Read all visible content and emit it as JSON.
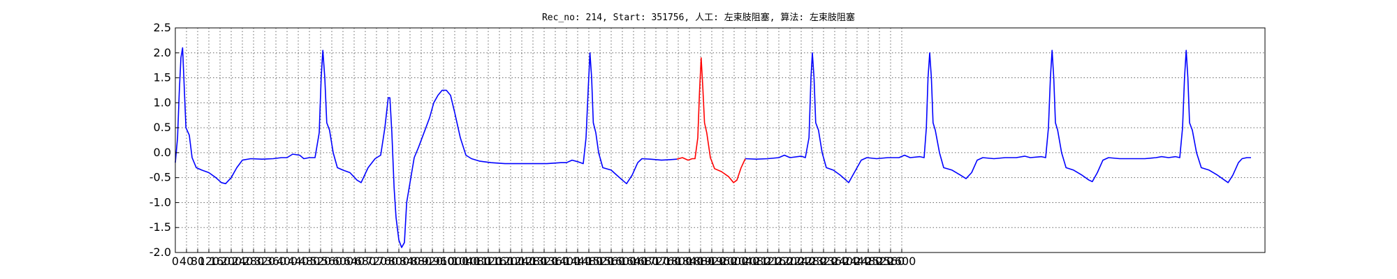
{
  "chart_data": {
    "type": "line",
    "title": "Rec_no: 214, Start: 351756, 人工: 左束肢阻塞, 算法: 左束肢阻塞",
    "xlabel": "",
    "ylabel": "",
    "xlim": [
      0,
      3900
    ],
    "ylim": [
      -2.0,
      2.5
    ],
    "y_ticks": [
      "-2.0",
      "-1.5",
      "-1.0",
      "-0.5",
      "0.0",
      "0.5",
      "1.0",
      "1.5",
      "2.0",
      "2.5"
    ],
    "x_ticks": [
      "0",
      "40",
      "80",
      "120",
      "160",
      "200",
      "240",
      "280",
      "320",
      "360",
      "400",
      "440",
      "480",
      "520",
      "560",
      "600",
      "640",
      "680",
      "720",
      "760",
      "800",
      "840",
      "880",
      "920",
      "960",
      "1000",
      "1040",
      "1080",
      "1120",
      "1160",
      "1200",
      "1240",
      "1280",
      "1320",
      "1360",
      "1400",
      "1440",
      "1480",
      "1520",
      "1560",
      "1600",
      "1640",
      "1680",
      "1720",
      "1760",
      "1800",
      "1840",
      "1880",
      "1920",
      "1960",
      "2000",
      "2040",
      "2080",
      "2120",
      "2160",
      "2200",
      "2240",
      "2280",
      "2320",
      "2360",
      "2400",
      "2440",
      "2480",
      "2520",
      "2560",
      "2600"
    ],
    "grid": true,
    "series": [
      {
        "color": "#0000ff",
        "points": [
          [
            0,
            -0.2
          ],
          [
            8,
            0.3
          ],
          [
            14,
            1.2
          ],
          [
            20,
            1.9
          ],
          [
            26,
            2.1
          ],
          [
            32,
            1.3
          ],
          [
            38,
            0.5
          ],
          [
            50,
            0.35
          ],
          [
            60,
            -0.1
          ],
          [
            75,
            -0.3
          ],
          [
            95,
            -0.35
          ],
          [
            120,
            -0.4
          ],
          [
            145,
            -0.5
          ],
          [
            165,
            -0.6
          ],
          [
            180,
            -0.62
          ],
          [
            200,
            -0.5
          ],
          [
            220,
            -0.3
          ],
          [
            240,
            -0.15
          ],
          [
            270,
            -0.12
          ],
          [
            310,
            -0.13
          ],
          [
            350,
            -0.12
          ],
          [
            380,
            -0.1
          ],
          [
            400,
            -0.1
          ],
          [
            420,
            -0.03
          ],
          [
            445,
            -0.05
          ],
          [
            460,
            -0.12
          ],
          [
            480,
            -0.1
          ],
          [
            500,
            -0.1
          ],
          [
            515,
            0.4
          ],
          [
            522,
            1.5
          ],
          [
            528,
            2.05
          ],
          [
            535,
            1.5
          ],
          [
            542,
            0.6
          ],
          [
            552,
            0.45
          ],
          [
            565,
            0.0
          ],
          [
            580,
            -0.3
          ],
          [
            600,
            -0.35
          ],
          [
            625,
            -0.4
          ],
          [
            650,
            -0.55
          ],
          [
            665,
            -0.6
          ],
          [
            690,
            -0.3
          ],
          [
            715,
            -0.12
          ],
          [
            735,
            -0.05
          ],
          [
            750,
            0.5
          ],
          [
            762,
            1.1
          ],
          [
            768,
            1.1
          ],
          [
            775,
            0.4
          ],
          [
            783,
            -0.7
          ],
          [
            790,
            -1.3
          ],
          [
            800,
            -1.75
          ],
          [
            810,
            -1.9
          ],
          [
            820,
            -1.8
          ],
          [
            828,
            -1.0
          ],
          [
            840,
            -0.6
          ],
          [
            855,
            -0.1
          ],
          [
            870,
            0.1
          ],
          [
            890,
            0.4
          ],
          [
            910,
            0.7
          ],
          [
            925,
            1.0
          ],
          [
            940,
            1.15
          ],
          [
            955,
            1.25
          ],
          [
            970,
            1.25
          ],
          [
            985,
            1.15
          ],
          [
            1000,
            0.8
          ],
          [
            1020,
            0.3
          ],
          [
            1040,
            -0.05
          ],
          [
            1060,
            -0.12
          ],
          [
            1090,
            -0.17
          ],
          [
            1130,
            -0.2
          ],
          [
            1180,
            -0.22
          ],
          [
            1230,
            -0.22
          ],
          [
            1280,
            -0.22
          ],
          [
            1330,
            -0.22
          ],
          [
            1380,
            -0.2
          ],
          [
            1400,
            -0.2
          ],
          [
            1420,
            -0.15
          ],
          [
            1440,
            -0.18
          ],
          [
            1460,
            -0.22
          ],
          [
            1470,
            0.3
          ],
          [
            1478,
            1.3
          ],
          [
            1484,
            2.0
          ],
          [
            1490,
            1.5
          ],
          [
            1496,
            0.6
          ],
          [
            1505,
            0.4
          ],
          [
            1515,
            0.0
          ],
          [
            1530,
            -0.3
          ],
          [
            1560,
            -0.35
          ],
          [
            1580,
            -0.45
          ],
          [
            1600,
            -0.55
          ],
          [
            1615,
            -0.62
          ],
          [
            1635,
            -0.45
          ],
          [
            1655,
            -0.2
          ],
          [
            1670,
            -0.12
          ],
          [
            1700,
            -0.13
          ],
          [
            1740,
            -0.15
          ],
          [
            1770,
            -0.14
          ],
          [
            1795,
            -0.13
          ]
        ]
      },
      {
        "color": "#ff0000",
        "points": [
          [
            1795,
            -0.13
          ],
          [
            1815,
            -0.1
          ],
          [
            1835,
            -0.15
          ],
          [
            1850,
            -0.12
          ],
          [
            1860,
            -0.12
          ],
          [
            1870,
            0.3
          ],
          [
            1876,
            1.2
          ],
          [
            1882,
            1.9
          ],
          [
            1888,
            1.3
          ],
          [
            1894,
            0.6
          ],
          [
            1902,
            0.4
          ],
          [
            1915,
            -0.1
          ],
          [
            1930,
            -0.32
          ],
          [
            1955,
            -0.38
          ],
          [
            1980,
            -0.48
          ],
          [
            1998,
            -0.6
          ],
          [
            2010,
            -0.55
          ],
          [
            2025,
            -0.3
          ],
          [
            2040,
            -0.12
          ]
        ]
      },
      {
        "color": "#0000ff",
        "points": [
          [
            2040,
            -0.12
          ],
          [
            2080,
            -0.13
          ],
          [
            2120,
            -0.12
          ],
          [
            2160,
            -0.1
          ],
          [
            2180,
            -0.05
          ],
          [
            2200,
            -0.1
          ],
          [
            2240,
            -0.07
          ],
          [
            2255,
            -0.1
          ],
          [
            2268,
            0.3
          ],
          [
            2275,
            1.5
          ],
          [
            2280,
            2.0
          ],
          [
            2286,
            1.5
          ],
          [
            2292,
            0.6
          ],
          [
            2302,
            0.45
          ],
          [
            2315,
            0.0
          ],
          [
            2330,
            -0.3
          ],
          [
            2355,
            -0.35
          ],
          [
            2380,
            -0.45
          ],
          [
            2400,
            -0.55
          ],
          [
            2410,
            -0.6
          ],
          [
            2430,
            -0.4
          ],
          [
            2455,
            -0.15
          ],
          [
            2475,
            -0.1
          ],
          [
            2510,
            -0.12
          ],
          [
            2550,
            -0.1
          ],
          [
            2590,
            -0.1
          ],
          [
            2610,
            -0.05
          ],
          [
            2630,
            -0.1
          ],
          [
            2665,
            -0.08
          ],
          [
            2680,
            -0.1
          ],
          [
            2688,
            0.5
          ],
          [
            2694,
            1.5
          ],
          [
            2700,
            2.0
          ],
          [
            2706,
            1.5
          ],
          [
            2712,
            0.6
          ],
          [
            2720,
            0.45
          ],
          [
            2735,
            0.0
          ],
          [
            2750,
            -0.3
          ],
          [
            2780,
            -0.35
          ],
          [
            2810,
            -0.45
          ],
          [
            2830,
            -0.52
          ],
          [
            2850,
            -0.4
          ],
          [
            2870,
            -0.15
          ],
          [
            2890,
            -0.1
          ],
          [
            2930,
            -0.12
          ],
          [
            2970,
            -0.1
          ],
          [
            3010,
            -0.1
          ],
          [
            3040,
            -0.07
          ],
          [
            3060,
            -0.1
          ],
          [
            3100,
            -0.08
          ],
          [
            3115,
            -0.1
          ],
          [
            3125,
            0.5
          ],
          [
            3132,
            1.5
          ],
          [
            3138,
            2.05
          ],
          [
            3144,
            1.5
          ],
          [
            3150,
            0.6
          ],
          [
            3158,
            0.45
          ],
          [
            3172,
            0.0
          ],
          [
            3188,
            -0.3
          ],
          [
            3215,
            -0.35
          ],
          [
            3245,
            -0.45
          ],
          [
            3270,
            -0.55
          ],
          [
            3282,
            -0.58
          ],
          [
            3300,
            -0.4
          ],
          [
            3320,
            -0.15
          ],
          [
            3340,
            -0.1
          ],
          [
            3380,
            -0.12
          ],
          [
            3420,
            -0.12
          ],
          [
            3470,
            -0.12
          ],
          [
            3510,
            -0.1
          ],
          [
            3530,
            -0.08
          ],
          [
            3555,
            -0.1
          ],
          [
            3580,
            -0.08
          ],
          [
            3595,
            -0.1
          ],
          [
            3605,
            0.5
          ],
          [
            3612,
            1.5
          ],
          [
            3618,
            2.05
          ],
          [
            3624,
            1.5
          ],
          [
            3630,
            0.6
          ],
          [
            3640,
            0.45
          ],
          [
            3655,
            0.0
          ],
          [
            3672,
            -0.3
          ],
          [
            3700,
            -0.35
          ],
          [
            3730,
            -0.45
          ],
          [
            3755,
            -0.55
          ],
          [
            3768,
            -0.6
          ],
          [
            3785,
            -0.45
          ],
          [
            3805,
            -0.2
          ],
          [
            3818,
            -0.12
          ],
          [
            3835,
            -0.1
          ],
          [
            3850,
            -0.1
          ]
        ]
      }
    ]
  }
}
